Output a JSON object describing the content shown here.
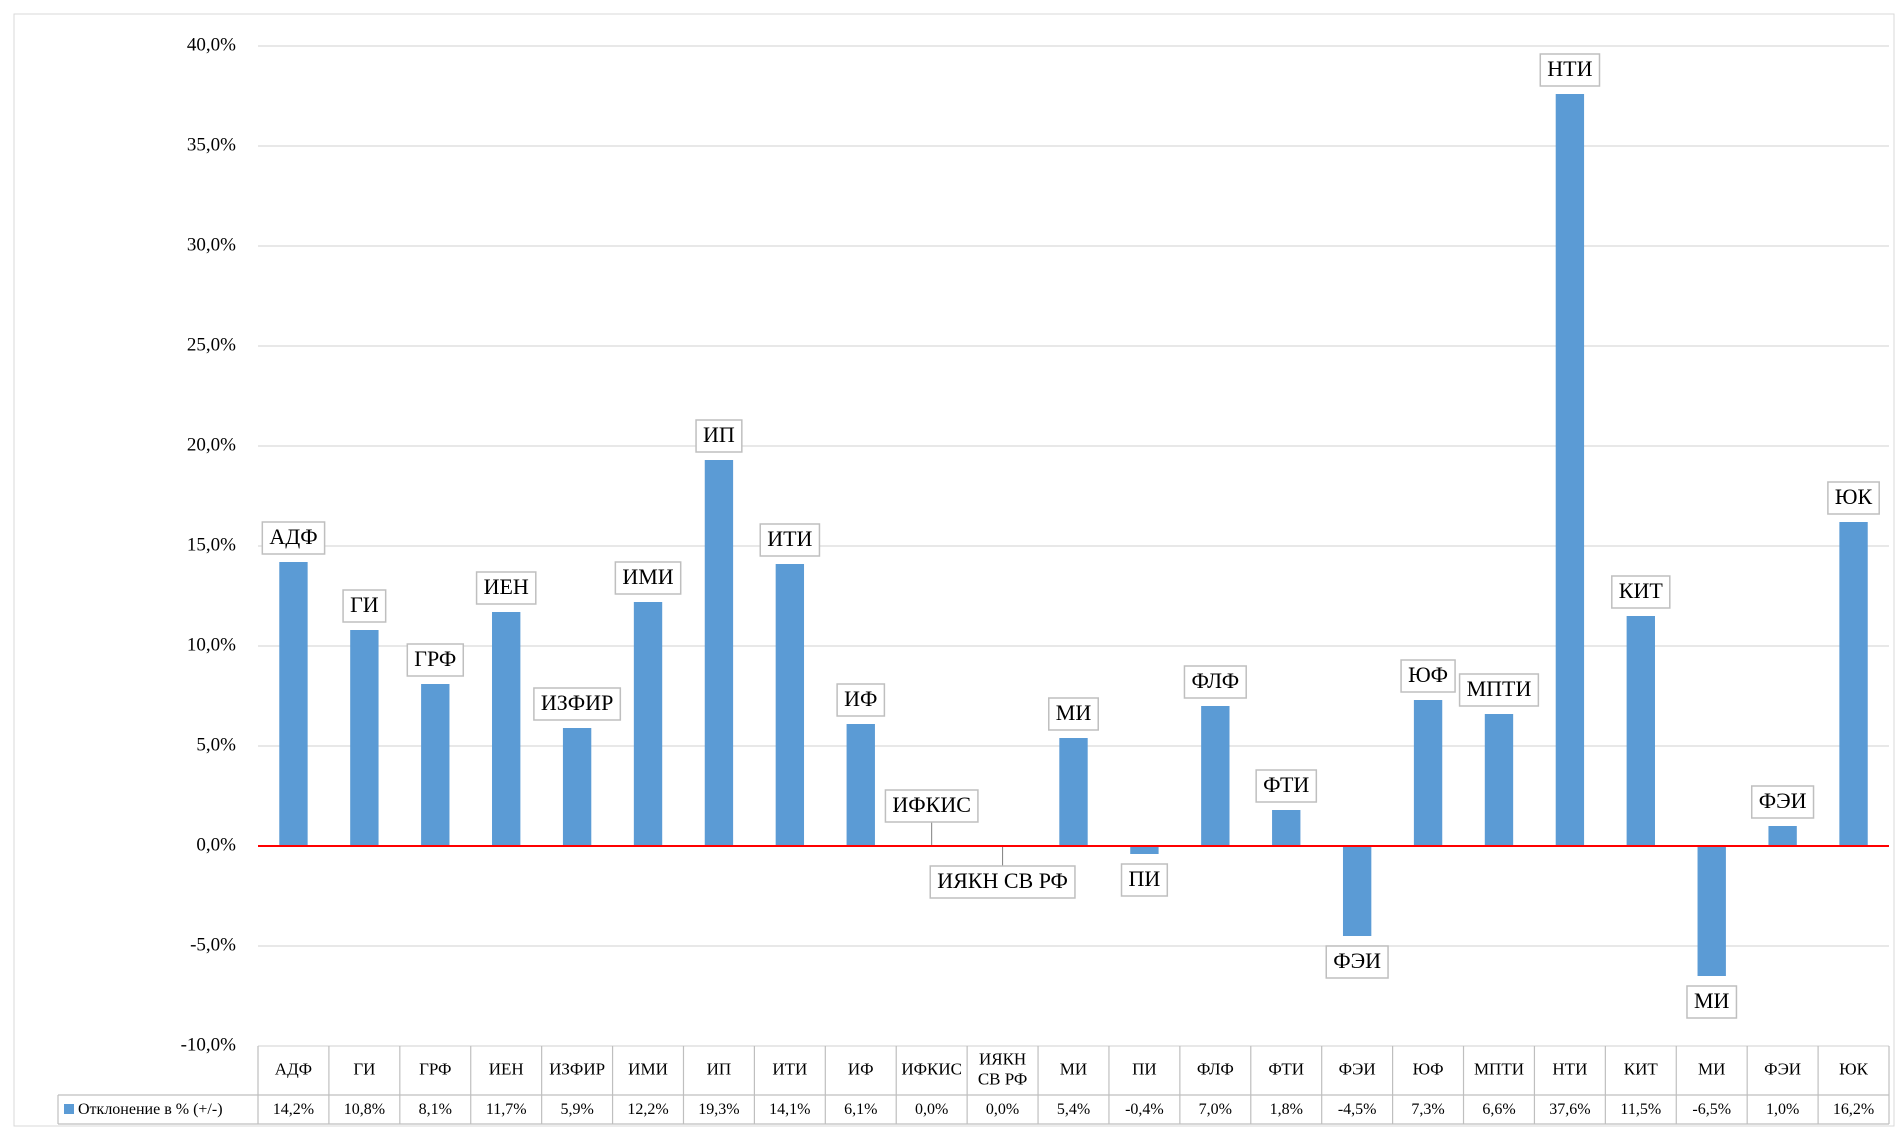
{
  "chart_data": {
    "type": "bar",
    "categories": [
      "АДФ",
      "ГИ",
      "ГРФ",
      "ИЕН",
      "ИЗФИР",
      "ИМИ",
      "ИП",
      "ИТИ",
      "ИФ",
      "ИФКИС",
      "ИЯКН СВ РФ",
      "МИ",
      "ПИ",
      "ФЛФ",
      "ФТИ",
      "ФЭИ",
      "ЮФ",
      "МПТИ",
      "НТИ",
      "КИТ",
      "МИ",
      "ФЭИ",
      "ЮК"
    ],
    "series": [
      {
        "name": "Отклонение в % (+/-)",
        "color": "#5b9bd5",
        "values": [
          14.2,
          10.8,
          8.1,
          11.7,
          5.9,
          12.2,
          19.3,
          14.1,
          6.1,
          0.0,
          0.0,
          5.4,
          -0.4,
          7.0,
          1.8,
          -4.5,
          7.3,
          6.6,
          37.6,
          11.5,
          -6.5,
          1.0,
          16.2
        ],
        "value_labels": [
          "14,2%",
          "10,8%",
          "8,1%",
          "11,7%",
          "5,9%",
          "12,2%",
          "19,3%",
          "14,1%",
          "6,1%",
          "0,0%",
          "0,0%",
          "5,4%",
          "-0,4%",
          "7,0%",
          "1,8%",
          "-4,5%",
          "7,3%",
          "6,6%",
          "37,6%",
          "11,5%",
          "-6,5%",
          "1,0%",
          "16,2%"
        ]
      }
    ],
    "ylim": [
      -10,
      40
    ],
    "yticks": [
      {
        "value": -10,
        "label": "-10,0%"
      },
      {
        "value": -5,
        "label": "-5,0%"
      },
      {
        "value": 0,
        "label": "0,0%"
      },
      {
        "value": 5,
        "label": "5,0%"
      },
      {
        "value": 10,
        "label": "10,0%"
      },
      {
        "value": 15,
        "label": "15,0%"
      },
      {
        "value": 20,
        "label": "20,0%"
      },
      {
        "value": 25,
        "label": "25,0%"
      },
      {
        "value": 30,
        "label": "30,0%"
      },
      {
        "value": 35,
        "label": "35,0%"
      },
      {
        "value": 40,
        "label": "40,0%"
      }
    ],
    "grid": true,
    "zero_line_color": "#ff0000"
  }
}
